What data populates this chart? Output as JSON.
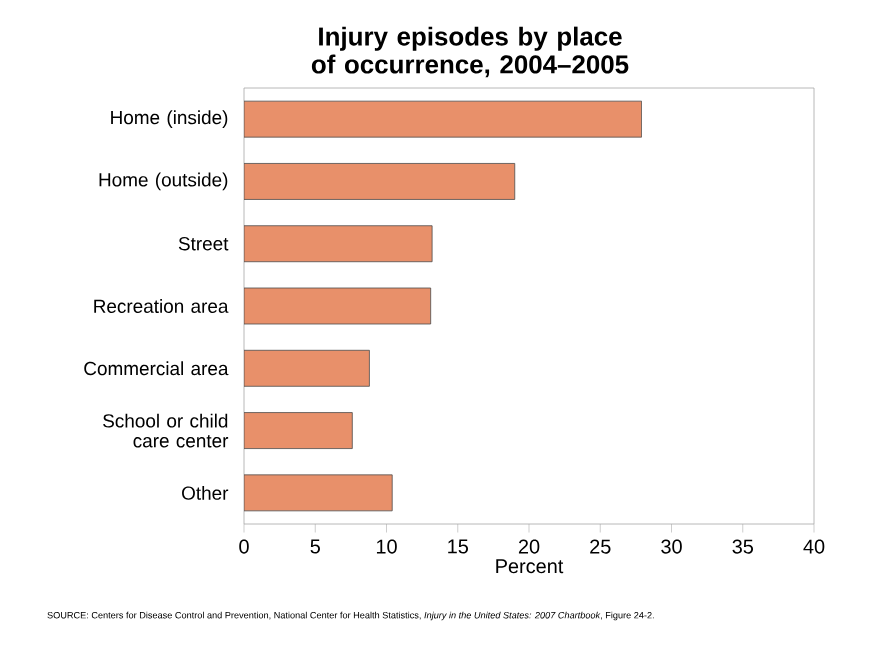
{
  "chart_data": {
    "type": "bar",
    "orientation": "horizontal",
    "title": "Injury episodes by place of occurrence, 2004–2005",
    "categories": [
      "Home (inside)",
      "Home (outside)",
      "Street",
      "Recreation area",
      "Commercial area",
      "School or child care center",
      "Other"
    ],
    "values": [
      27.9,
      19.0,
      13.2,
      13.1,
      8.8,
      7.6,
      10.4
    ],
    "color": "#e8906a",
    "xlabel": "Percent",
    "xlim": [
      0,
      40
    ],
    "xticks": [
      0,
      5,
      10,
      15,
      20,
      25,
      30,
      35,
      40
    ],
    "grid": false,
    "annotations": [
      "SOURCE: Centers for Disease Control and Prevention, National Center for Health Statistics, *Injury in the United States: 2007 Chartbook*, Figure 24-2."
    ]
  }
}
